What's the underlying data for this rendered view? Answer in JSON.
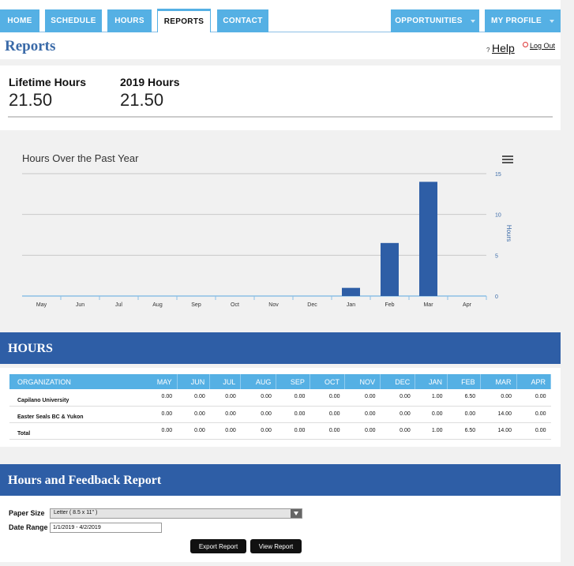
{
  "nav": {
    "tabs": [
      {
        "label": "HOME"
      },
      {
        "label": "SCHEDULE"
      },
      {
        "label": "HOURS"
      },
      {
        "label": "REPORTS"
      },
      {
        "label": "CONTACT"
      }
    ],
    "right_tabs": [
      {
        "label": "OPPORTUNITIES"
      },
      {
        "label": "MY PROFILE"
      }
    ]
  },
  "header": {
    "title": "Reports",
    "help_mark": "?",
    "help": "Help",
    "logout": "Log Out"
  },
  "summary": {
    "lifetime_label": "Lifetime Hours",
    "lifetime_value": "21.50",
    "year_label": "2019 Hours",
    "year_value": "21.50"
  },
  "chart_data": {
    "type": "bar",
    "title": "Hours Over the Past Year",
    "categories": [
      "May",
      "Jun",
      "Jul",
      "Aug",
      "Sep",
      "Oct",
      "Nov",
      "Dec",
      "Jan",
      "Feb",
      "Mar",
      "Apr"
    ],
    "values": [
      0,
      0,
      0,
      0,
      0,
      0,
      0,
      0,
      1,
      6.5,
      14,
      0
    ],
    "ylabel": "Hours",
    "ylim": [
      0,
      15
    ],
    "yticks": [
      "0",
      "5",
      "10",
      "15"
    ],
    "yaxis_side": "right",
    "grid": true,
    "legend": "none",
    "bar_color": "#2e5ea6"
  },
  "hours_section": {
    "title": "HOURS",
    "headers": [
      "ORGANIZATION",
      "MAY",
      "JUN",
      "JUL",
      "AUG",
      "SEP",
      "OCT",
      "NOV",
      "DEC",
      "JAN",
      "FEB",
      "MAR",
      "APR"
    ],
    "rows": [
      {
        "org": "Capilano University",
        "values": [
          "0.00",
          "0.00",
          "0.00",
          "0.00",
          "0.00",
          "0.00",
          "0.00",
          "0.00",
          "1.00",
          "6.50",
          "0.00",
          "0.00"
        ]
      },
      {
        "org": "Easter Seals BC & Yukon",
        "values": [
          "0.00",
          "0.00",
          "0.00",
          "0.00",
          "0.00",
          "0.00",
          "0.00",
          "0.00",
          "0.00",
          "0.00",
          "14.00",
          "0.00"
        ]
      },
      {
        "org": "Total",
        "values": [
          "0.00",
          "0.00",
          "0.00",
          "0.00",
          "0.00",
          "0.00",
          "0.00",
          "0.00",
          "1.00",
          "6.50",
          "14.00",
          "0.00"
        ]
      }
    ]
  },
  "feedback": {
    "title": "Hours and Feedback Report",
    "paper_label": "Paper Size",
    "paper_value": "Letter ( 8.5 x 11\" )",
    "date_label": "Date Range",
    "date_value": "1/1/2019 - 4/2/2019",
    "export_label": "Export Report",
    "view_label": "View Report"
  }
}
